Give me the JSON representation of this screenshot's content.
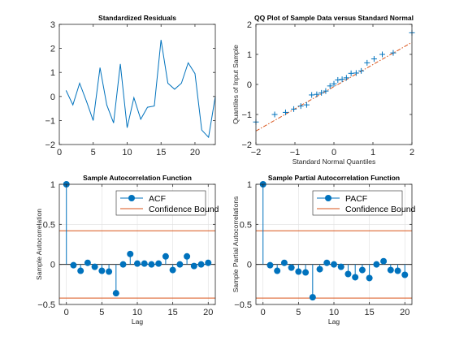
{
  "chart_data": [
    {
      "type": "line",
      "title": "Standardized Residuals",
      "xlabel": "",
      "ylabel": "",
      "xlim": [
        0,
        23
      ],
      "ylim": [
        -2,
        3
      ],
      "xticks": [
        0,
        5,
        10,
        15,
        20
      ],
      "yticks": [
        -2,
        -1,
        0,
        1,
        2,
        3
      ],
      "grid": false,
      "color": "#0072BD",
      "series": [
        {
          "x": [
            1,
            2,
            3,
            4,
            5,
            6,
            7,
            8,
            9,
            10,
            11,
            12,
            13,
            14,
            15,
            16,
            17,
            18,
            19,
            20,
            21,
            22,
            23
          ],
          "values": [
            0.25,
            -0.35,
            0.55,
            -0.2,
            -1.0,
            1.2,
            -0.35,
            -1.1,
            1.35,
            -1.3,
            -0.05,
            -0.95,
            -0.45,
            -0.4,
            2.35,
            0.55,
            0.3,
            0.55,
            1.4,
            0.95,
            -1.4,
            -1.7,
            0.0
          ]
        }
      ]
    },
    {
      "type": "scatter",
      "title": "QQ Plot of Sample Data versus Standard Normal",
      "xlabel": "Standard Normal Quantiles",
      "ylabel": "Quantiles of Input Sample",
      "xlim": [
        -2,
        2
      ],
      "ylim": [
        -2,
        2
      ],
      "xticks": [
        -2,
        -1,
        0,
        1,
        2
      ],
      "yticks": [
        -2,
        -1,
        0,
        1,
        2
      ],
      "grid": false,
      "marker": "+",
      "marker_color": "#0072BD",
      "line_color": "#D95319",
      "reference_line": {
        "x": [
          -2,
          2
        ],
        "y": [
          -1.55,
          1.4
        ]
      },
      "points": [
        [
          -2.0,
          -1.25
        ],
        [
          -1.52,
          -1.0
        ],
        [
          -1.24,
          -0.93
        ],
        [
          -1.03,
          -0.82
        ],
        [
          -0.85,
          -0.72
        ],
        [
          -0.7,
          -0.68
        ],
        [
          -0.57,
          -0.35
        ],
        [
          -0.44,
          -0.33
        ],
        [
          -0.32,
          -0.28
        ],
        [
          -0.21,
          -0.22
        ],
        [
          -0.1,
          -0.05
        ],
        [
          0.0,
          0.02
        ],
        [
          0.1,
          0.15
        ],
        [
          0.21,
          0.17
        ],
        [
          0.32,
          0.22
        ],
        [
          0.44,
          0.37
        ],
        [
          0.57,
          0.38
        ],
        [
          0.7,
          0.45
        ],
        [
          0.85,
          0.72
        ],
        [
          1.03,
          0.85
        ],
        [
          1.24,
          1.0
        ],
        [
          1.52,
          1.05
        ],
        [
          2.0,
          1.72
        ]
      ]
    },
    {
      "type": "stem",
      "title": "Sample Autocorrelation Function",
      "xlabel": "Lag",
      "ylabel": "Sample Autocorrelation",
      "xlim": [
        -1,
        21
      ],
      "ylim": [
        -0.5,
        1
      ],
      "xticks": [
        0,
        5,
        10,
        15,
        20
      ],
      "yticks": [
        -0.5,
        0,
        0.5,
        1
      ],
      "grid": true,
      "legend": {
        "placement": "top-right",
        "entries": [
          "ACF",
          "Confidence Bound"
        ]
      },
      "series": [
        {
          "name": "ACF",
          "color": "#0072BD",
          "x": [
            0,
            1,
            2,
            3,
            4,
            5,
            6,
            7,
            8,
            9,
            10,
            11,
            12,
            13,
            14,
            15,
            16,
            17,
            18,
            19,
            20
          ],
          "values": [
            1.0,
            -0.01,
            -0.08,
            0.02,
            -0.03,
            -0.08,
            -0.09,
            -0.36,
            0.0,
            0.13,
            0.01,
            0.01,
            0.0,
            0.01,
            0.1,
            -0.07,
            0.0,
            0.1,
            -0.02,
            0.0,
            0.02
          ]
        },
        {
          "name": "Confidence Bound",
          "color": "#D95319",
          "bounds": [
            0.42,
            -0.42
          ]
        }
      ]
    },
    {
      "type": "stem",
      "title": "Sample Partial Autocorrelation Function",
      "xlabel": "Lag",
      "ylabel": "Sample Partial Autocorrelations",
      "xlim": [
        -1,
        21
      ],
      "ylim": [
        -0.5,
        1
      ],
      "xticks": [
        0,
        5,
        10,
        15,
        20
      ],
      "yticks": [
        -0.5,
        0,
        0.5,
        1
      ],
      "grid": true,
      "legend": {
        "placement": "top-right",
        "entries": [
          "PACF",
          "Confidence Bound"
        ]
      },
      "series": [
        {
          "name": "PACF",
          "color": "#0072BD",
          "x": [
            0,
            1,
            2,
            3,
            4,
            5,
            6,
            7,
            8,
            9,
            10,
            11,
            12,
            13,
            14,
            15,
            16,
            17,
            18,
            19,
            20
          ],
          "values": [
            1.0,
            -0.01,
            -0.08,
            0.02,
            -0.04,
            -0.09,
            -0.1,
            -0.41,
            -0.06,
            0.02,
            0.0,
            -0.03,
            -0.12,
            -0.16,
            -0.07,
            -0.17,
            0.0,
            0.04,
            -0.07,
            -0.08,
            -0.13
          ]
        },
        {
          "name": "Confidence Bound",
          "color": "#D95319",
          "bounds": [
            0.42,
            -0.42
          ]
        }
      ]
    }
  ]
}
